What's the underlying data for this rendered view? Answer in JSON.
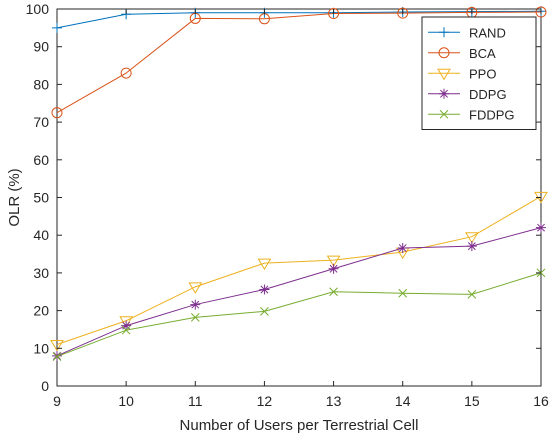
{
  "chart_data": {
    "type": "line",
    "xlabel": "Number of Users per Terrestrial Cell",
    "ylabel": "OLR (%)",
    "x": [
      9,
      10,
      11,
      12,
      13,
      14,
      15,
      16
    ],
    "xlim": [
      9,
      16
    ],
    "ylim": [
      0,
      100
    ],
    "xticks": [
      "9",
      "10",
      "11",
      "12",
      "13",
      "14",
      "15",
      "16"
    ],
    "yticks": [
      "0",
      "10",
      "20",
      "30",
      "40",
      "50",
      "60",
      "70",
      "80",
      "90",
      "100"
    ],
    "grid": false,
    "legend_position": "top-right",
    "series": [
      {
        "name": "RAND",
        "values": [
          95,
          98.6,
          99,
          99,
          99,
          99.2,
          99.3,
          99.4
        ],
        "color": "#0072BD",
        "marker": "plus"
      },
      {
        "name": "BCA",
        "values": [
          72.5,
          83,
          97.5,
          97.4,
          98.8,
          98.9,
          99.1,
          99.2
        ],
        "color": "#D95319",
        "marker": "circle"
      },
      {
        "name": "PPO",
        "values": [
          11,
          17.3,
          26.3,
          32.6,
          33.4,
          35.5,
          39.6,
          50.3
        ],
        "color": "#EDB120",
        "marker": "triangle-down"
      },
      {
        "name": "DDPG",
        "values": [
          8,
          16,
          21.6,
          25.6,
          31.1,
          36.6,
          37.1,
          42
        ],
        "color": "#7E2F8E",
        "marker": "asterisk"
      },
      {
        "name": "FDDPG",
        "values": [
          7.8,
          14.8,
          18.2,
          19.8,
          25,
          24.6,
          24.3,
          30
        ],
        "color": "#77AC30",
        "marker": "x"
      }
    ]
  }
}
